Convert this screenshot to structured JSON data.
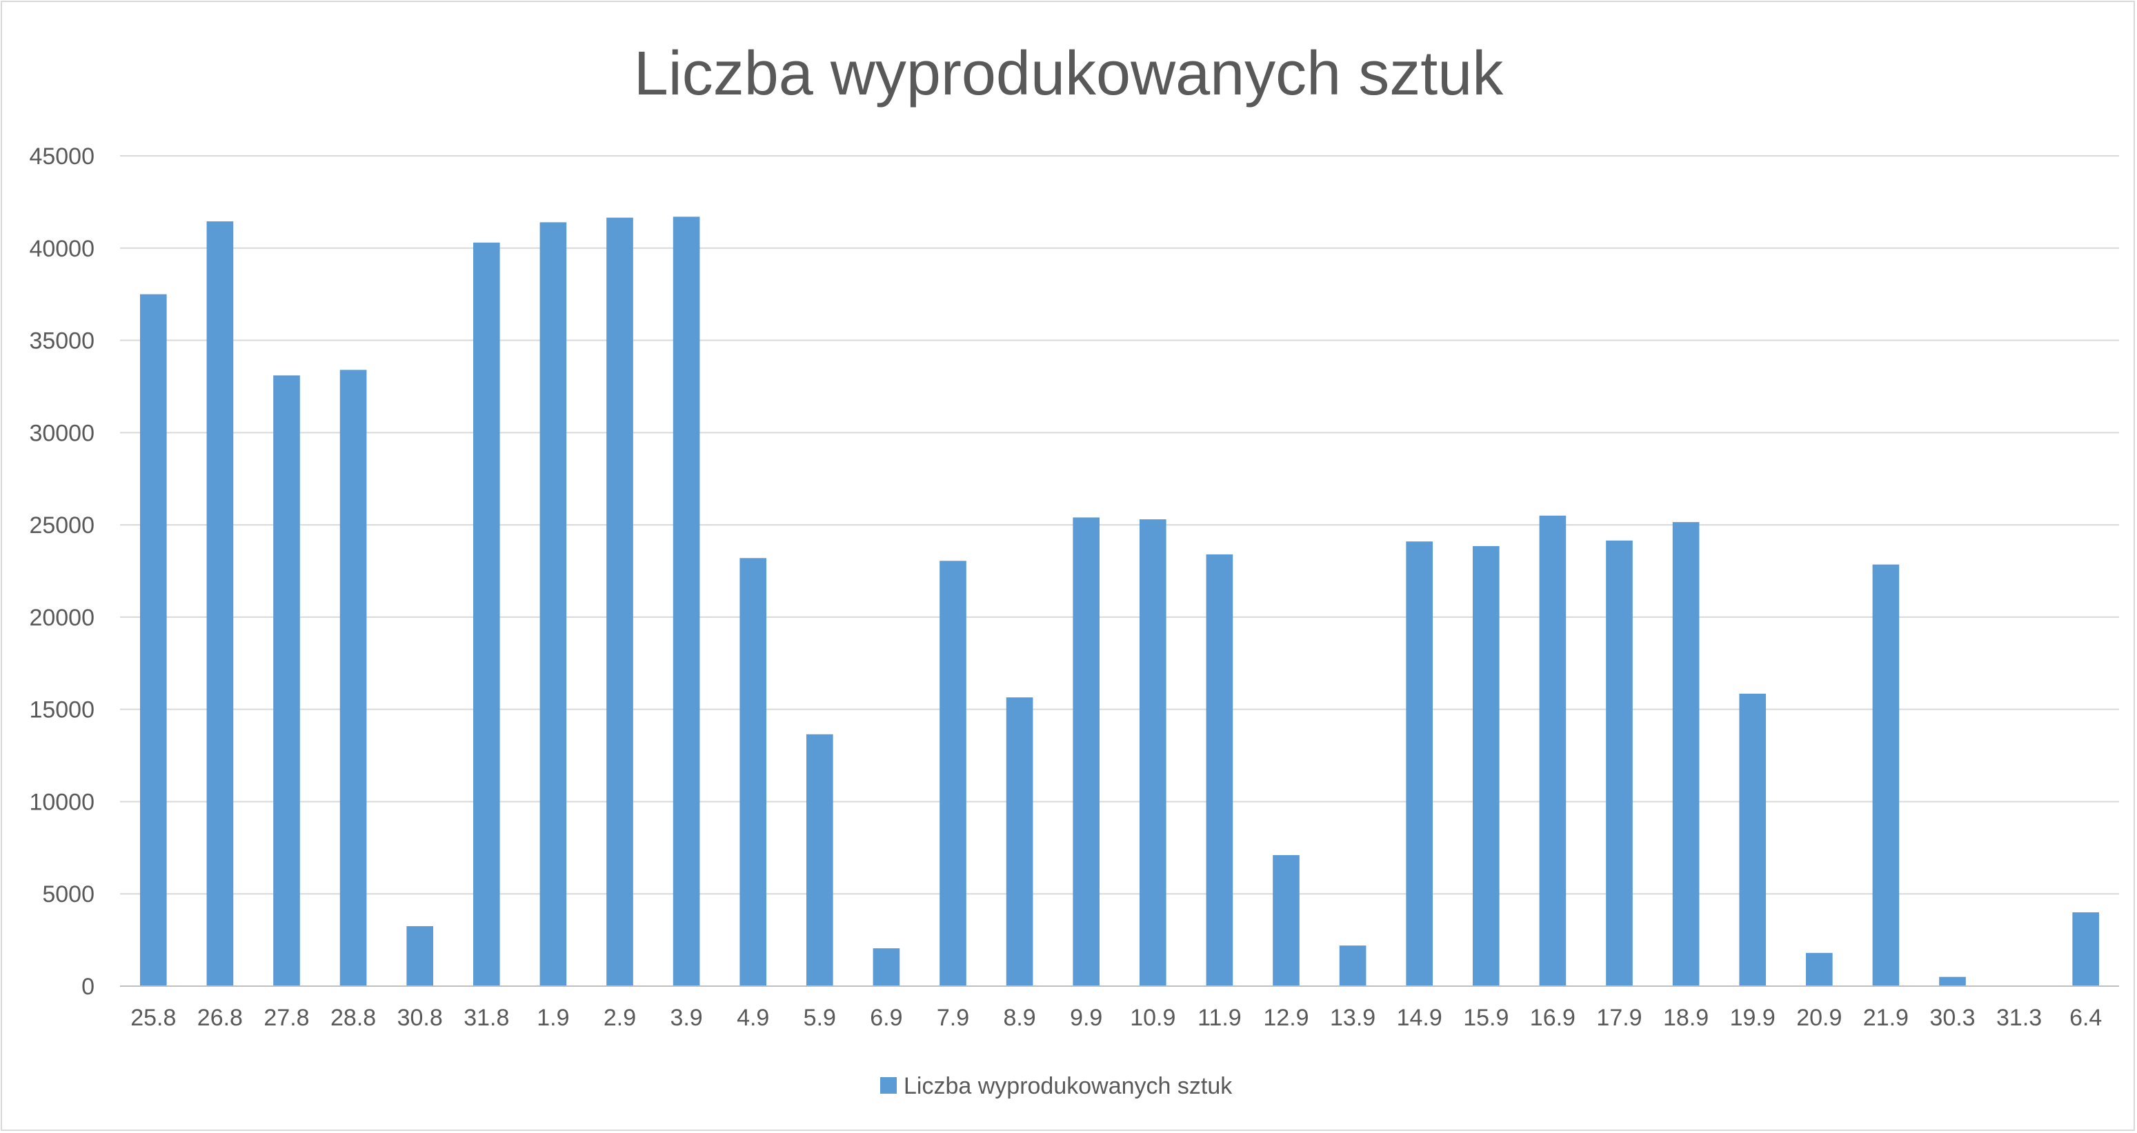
{
  "chart_data": {
    "type": "bar",
    "title": "Liczba wyprodukowanych sztuk",
    "xlabel": "",
    "ylabel": "",
    "ylim": [
      0,
      45000
    ],
    "yticks": [
      0,
      5000,
      10000,
      15000,
      20000,
      25000,
      30000,
      35000,
      40000,
      45000
    ],
    "ytick_labels": [
      "0",
      "5000",
      "10000",
      "15000",
      "20000",
      "25000",
      "30000",
      "35000",
      "40000",
      "45000"
    ],
    "grid": true,
    "legend": "bottom",
    "categories": [
      "25.8",
      "26.8",
      "27.8",
      "28.8",
      "30.8",
      "31.8",
      "1.9",
      "2.9",
      "3.9",
      "4.9",
      "5.9",
      "6.9",
      "7.9",
      "8.9",
      "9.9",
      "10.9",
      "11.9",
      "12.9",
      "13.9",
      "14.9",
      "15.9",
      "16.9",
      "17.9",
      "18.9",
      "19.9",
      "20.9",
      "21.9",
      "30.3",
      "31.3",
      "6.4"
    ],
    "series": [
      {
        "name": "Liczba wyprodukowanych sztuk",
        "color": "#5b9bd5",
        "values": [
          37500,
          41450,
          33100,
          33400,
          3250,
          40300,
          41400,
          41650,
          41700,
          23200,
          13650,
          2050,
          23050,
          15650,
          25400,
          25300,
          23400,
          7100,
          2200,
          24100,
          23850,
          25500,
          24150,
          25150,
          15850,
          1800,
          22850,
          500,
          0,
          4000
        ]
      }
    ]
  },
  "colors": {
    "gridline": "#d9d9d9",
    "axis": "#bfbfbf",
    "text": "#595959",
    "border": "#d9d9d9"
  }
}
